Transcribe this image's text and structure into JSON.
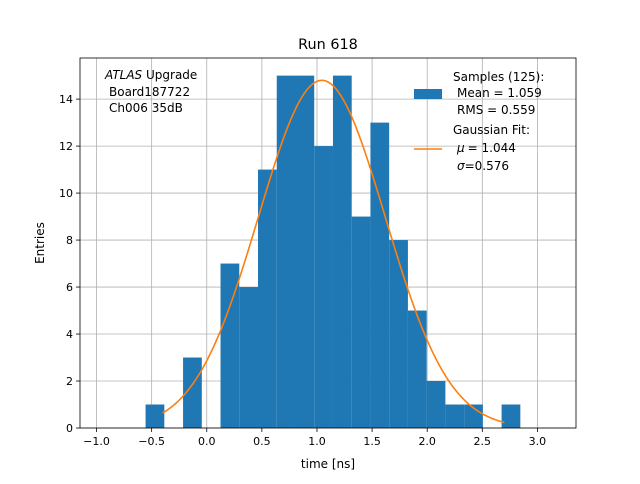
{
  "chart_data": {
    "type": "bar",
    "title": "Run 618",
    "xlabel": "time [ns]",
    "ylabel": "Entries",
    "xlim": [
      -1.15,
      3.35
    ],
    "ylim": [
      0,
      15.75
    ],
    "grid": true,
    "xticks": [
      -1.0,
      -0.5,
      0.0,
      0.5,
      1.0,
      1.5,
      2.0,
      2.5,
      3.0
    ],
    "xtick_labels": [
      "−1.0",
      "−0.5",
      "0.0",
      "0.5",
      "1.0",
      "1.5",
      "2.0",
      "2.5",
      "3.0"
    ],
    "yticks": [
      0,
      2,
      4,
      6,
      8,
      10,
      12,
      14
    ],
    "ytick_labels": [
      "0",
      "2",
      "4",
      "6",
      "8",
      "10",
      "12",
      "14"
    ],
    "bin_edges": [
      -0.555,
      -0.385,
      -0.215,
      -0.045,
      0.125,
      0.295,
      0.465,
      0.635,
      0.805,
      0.975,
      1.145,
      1.315,
      1.485,
      1.655,
      1.825,
      1.995,
      2.165,
      2.335,
      2.505,
      2.675,
      2.845
    ],
    "values": [
      1,
      0,
      3,
      0,
      7,
      6,
      11,
      15,
      15,
      12,
      15,
      9,
      13,
      8,
      5,
      2,
      1,
      1,
      0,
      1
    ],
    "series": [
      {
        "name": "Samples (125):",
        "type": "histogram",
        "color": "#1f77b4"
      },
      {
        "name": "Gaussian Fit:",
        "type": "line",
        "color": "#ff7f0e",
        "amplitude": 14.8,
        "mu": 1.044,
        "sigma": 0.576,
        "x_range": [
          -0.4,
          2.7
        ]
      }
    ],
    "legend": {
      "location": "top-right",
      "samples_label": "Samples (125):",
      "samples_mean": "Mean = 1.059",
      "samples_rms": "RMS = 0.559",
      "fit_label": "Gaussian Fit:",
      "fit_mu_value": "= 1.044",
      "fit_sigma_value": "=0.576"
    },
    "annotation": {
      "experiment": "ATLAS",
      "suffix": " Upgrade",
      "board": "Board187722",
      "channel": "Ch006 35dB"
    }
  }
}
